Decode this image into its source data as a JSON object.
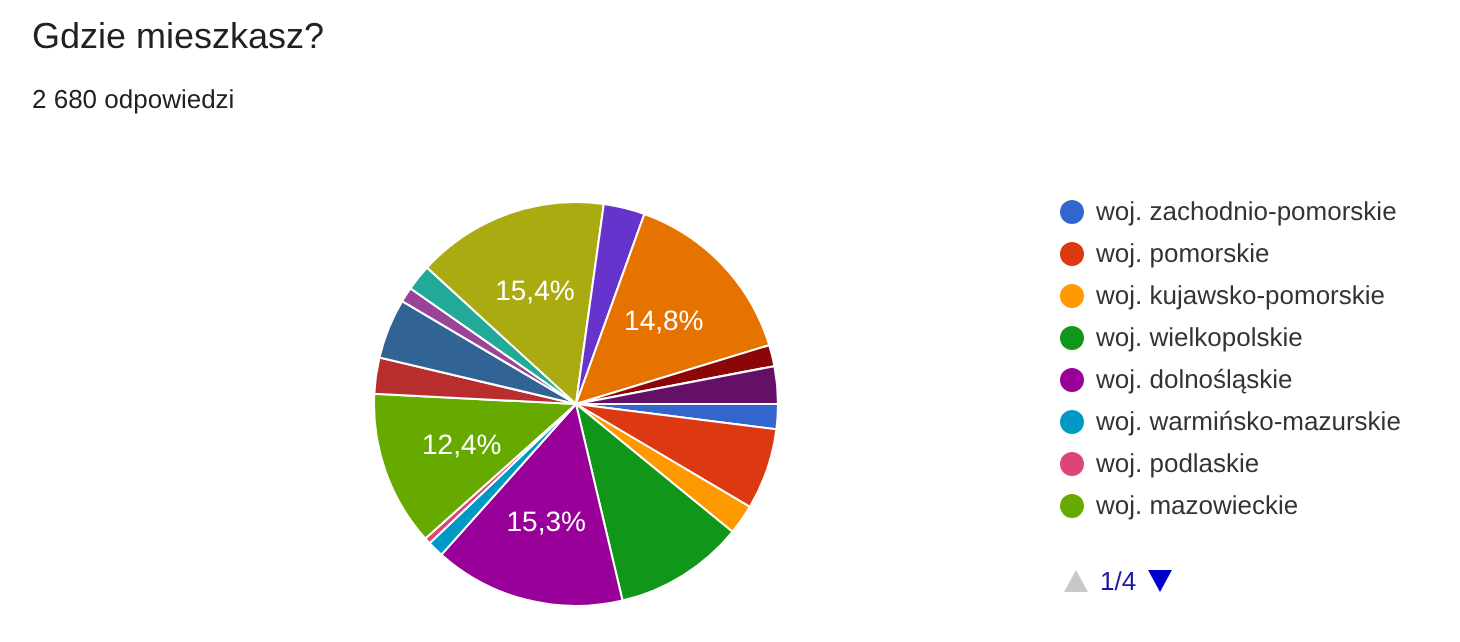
{
  "chart_data": {
    "type": "pie",
    "title": "Gdzie mieszkasz?",
    "subtitle": "2 680 odpowiedzi",
    "categories": [
      "woj. zachodnio-pomorskie",
      "woj. pomorskie",
      "woj. kujawsko-pomorskie",
      "woj. wielkopolskie",
      "woj. dolnośląskie",
      "woj. warmińsko-mazurskie",
      "woj. podlaskie",
      "woj. mazowieckie",
      null,
      null,
      null,
      null,
      null,
      null,
      null,
      null,
      null
    ],
    "values": [
      2.0,
      6.5,
      2.4,
      10.4,
      15.3,
      1.3,
      0.5,
      12.4,
      2.9,
      4.8,
      1.2,
      2.1,
      15.4,
      3.3,
      14.8,
      1.7,
      3.0
    ],
    "value_labels": [
      null,
      null,
      null,
      null,
      "15,3%",
      null,
      null,
      "12,4%",
      null,
      null,
      null,
      null,
      "15,4%",
      null,
      "14,8%",
      null,
      null
    ],
    "colors": [
      "#3366cc",
      "#dc3912",
      "#ff9900",
      "#109618",
      "#990099",
      "#0099c6",
      "#dd4477",
      "#66aa00",
      "#b82e2e",
      "#316395",
      "#994499",
      "#22aa99",
      "#aaaa11",
      "#6633cc",
      "#e67300",
      "#8b0707",
      "#651067"
    ],
    "legend": "right",
    "annotations": [
      "1/4"
    ]
  }
}
